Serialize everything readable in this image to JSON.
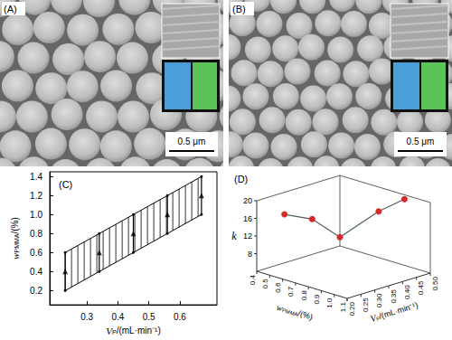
{
  "images": [
    {
      "label": "(A)",
      "scale_bar": "0.5 μm"
    },
    {
      "label": "(B)",
      "scale_bar": "0.5 μm"
    }
  ],
  "chart_data": [
    {
      "type": "scatter",
      "title": "(C)",
      "xlabel": {
        "main": "V",
        "sub": "P",
        "rest": "/(mL·min⁻¹)"
      },
      "ylabel": {
        "main": "w",
        "sub": "PMMA",
        "rest": "/(%)"
      },
      "x": [
        0.23,
        0.34,
        0.45,
        0.56,
        0.67
      ],
      "values": [
        0.4,
        0.6,
        0.8,
        1.0,
        1.2
      ],
      "lower": [
        0.2,
        0.4,
        0.6,
        0.8,
        1.0
      ],
      "upper": [
        0.6,
        0.8,
        1.0,
        1.2,
        1.4
      ],
      "marker": "triangle",
      "color": "#000000",
      "xlim": [
        0.18,
        0.72
      ],
      "xticks": [
        0.3,
        0.4,
        0.5,
        0.6
      ],
      "ylim": [
        0.05,
        1.45
      ],
      "yticks": [
        0.2,
        0.4,
        0.6,
        0.8,
        {
          "value": 1.0,
          "label": "1.0"
        },
        1.2,
        1.4
      ],
      "grid": false
    },
    {
      "type": "line3d",
      "title": "(D)",
      "xlabel": {
        "main": "V",
        "sub": "P",
        "rest": "/(mL·min⁻¹)"
      },
      "ylabel": {
        "main": "w",
        "sub": "PMMA",
        "rest": "/(%)"
      },
      "zlabel": "k",
      "x": [
        0.3,
        0.4,
        0.5,
        0.5,
        0.5
      ],
      "y": [
        0.4,
        0.4,
        0.4,
        0.7,
        0.9
      ],
      "z": [
        15,
        12,
        6,
        14.5,
        19
      ],
      "marker": "circle",
      "color": "#d42a2a",
      "xlim": [
        0.2,
        0.5
      ],
      "xticks": [
        {
          "value": 0.2,
          "label": "0.20"
        },
        0.25,
        {
          "value": 0.3,
          "label": "0.30"
        },
        0.35,
        {
          "value": 0.4,
          "label": "0.40"
        },
        0.45,
        {
          "value": 0.5,
          "label": "0.50"
        }
      ],
      "ylim": [
        0.4,
        1.1
      ],
      "yticks": [
        0.4,
        0.5,
        0.6,
        0.7,
        0.8,
        0.9,
        {
          "value": 1.0,
          "label": "1.0"
        },
        1.1
      ],
      "zlim": [
        4,
        20
      ],
      "zticks": [
        8,
        12,
        16,
        20
      ]
    }
  ]
}
